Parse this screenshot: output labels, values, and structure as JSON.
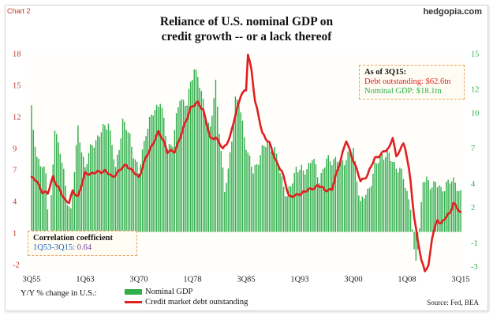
{
  "corner_label": "Chart 2",
  "brand": "hedgopia.com",
  "title_line1": "Reliance of U.S. nominal GDP on",
  "title_line2": "credit growth -- or a lack thereof",
  "as_of": {
    "header": "As of 3Q15:",
    "debt": "Debt outstanding: $62.6tn",
    "gdp": "Nominal GDP: $18.1tn"
  },
  "correlation": {
    "header": "Correlation coefficient",
    "range_label": "1Q53-3Q15: ",
    "value": "0.64"
  },
  "legend": {
    "prefix": "Y/Y % change in U.S.:",
    "gdp": "Nominal GDP",
    "debt": "Credit market debt outstanding"
  },
  "source": "Source: Fed, BEA",
  "colors": {
    "gdp_bars": "#2fae4a",
    "debt_line": "#e02020",
    "left_axis_text": "#c0392b",
    "right_axis_text": "#2fae4a",
    "range_text": "#1f5fbf",
    "value_text": "#7a3fa0"
  },
  "chart_data": {
    "type": "bar+line",
    "x_tick_labels": [
      "3Q55",
      "1Q63",
      "3Q70",
      "1Q78",
      "3Q85",
      "1Q93",
      "3Q00",
      "1Q08",
      "3Q15"
    ],
    "x_tick_quarters": [
      "1955Q3",
      "1963Q1",
      "1970Q3",
      "1978Q1",
      "1985Q3",
      "1993Q1",
      "2000Q3",
      "2008Q1",
      "2015Q3"
    ],
    "left_axis": {
      "label": "Credit market debt outstanding (Y/Y %)",
      "ticks": [
        -2,
        1,
        4,
        7,
        9,
        12,
        15,
        18
      ],
      "range": [
        -2.5,
        18
      ]
    },
    "right_axis": {
      "label": "Nominal GDP (Y/Y %)",
      "ticks": [
        -3,
        -1,
        2,
        4,
        7,
        10,
        12,
        15
      ],
      "range": [
        -3.3,
        15
      ]
    },
    "grid": false,
    "gdp_anchors": [
      [
        "1955Q3",
        10.6
      ],
      [
        "1956Q2",
        6.0
      ],
      [
        "1957Q3",
        5.2
      ],
      [
        "1958Q1",
        -0.5
      ],
      [
        "1958Q4",
        8.8
      ],
      [
        "1959Q3",
        7.0
      ],
      [
        "1960Q3",
        2.6
      ],
      [
        "1961Q1",
        1.9
      ],
      [
        "1962Q1",
        8.6
      ],
      [
        "1963Q1",
        5.5
      ],
      [
        "1964Q1",
        7.4
      ],
      [
        "1965Q2",
        8.4
      ],
      [
        "1966Q2",
        9.4
      ],
      [
        "1967Q2",
        5.2
      ],
      [
        "1968Q2",
        9.4
      ],
      [
        "1969Q2",
        8.0
      ],
      [
        "1970Q3",
        4.9
      ],
      [
        "1971Q3",
        8.6
      ],
      [
        "1972Q3",
        10.0
      ],
      [
        "1973Q3",
        11.2
      ],
      [
        "1974Q3",
        7.2
      ],
      [
        "1975Q2",
        7.6
      ],
      [
        "1976Q2",
        11.4
      ],
      [
        "1977Q2",
        10.8
      ],
      [
        "1978Q2",
        14.0
      ],
      [
        "1978Q4",
        13.2
      ],
      [
        "1979Q4",
        10.0
      ],
      [
        "1980Q3",
        8.8
      ],
      [
        "1981Q2",
        12.4
      ],
      [
        "1982Q3",
        3.4
      ],
      [
        "1983Q1",
        5.0
      ],
      [
        "1984Q1",
        11.2
      ],
      [
        "1984Q3",
        10.8
      ],
      [
        "1985Q4",
        6.6
      ],
      [
        "1986Q3",
        5.0
      ],
      [
        "1987Q3",
        6.6
      ],
      [
        "1988Q3",
        7.6
      ],
      [
        "1989Q3",
        6.8
      ],
      [
        "1990Q4",
        4.0
      ],
      [
        "1991Q2",
        2.8
      ],
      [
        "1992Q3",
        5.5
      ],
      [
        "1993Q3",
        5.0
      ],
      [
        "1994Q4",
        6.2
      ],
      [
        "1995Q4",
        4.5
      ],
      [
        "1996Q4",
        6.0
      ],
      [
        "1997Q4",
        6.2
      ],
      [
        "1998Q4",
        5.8
      ],
      [
        "1999Q4",
        6.5
      ],
      [
        "2000Q3",
        6.9
      ],
      [
        "2001Q3",
        2.4
      ],
      [
        "2002Q3",
        3.4
      ],
      [
        "2003Q3",
        5.4
      ],
      [
        "2004Q3",
        6.6
      ],
      [
        "2005Q3",
        6.4
      ],
      [
        "2006Q3",
        5.6
      ],
      [
        "2007Q3",
        4.6
      ],
      [
        "2008Q3",
        2.2
      ],
      [
        "2009Q1",
        -2.0
      ],
      [
        "2009Q2",
        -2.5
      ],
      [
        "2009Q4",
        0.4
      ],
      [
        "2010Q2",
        4.4
      ],
      [
        "2011Q2",
        4.0
      ],
      [
        "2012Q1",
        4.2
      ],
      [
        "2012Q4",
        3.4
      ],
      [
        "2013Q3",
        4.2
      ],
      [
        "2014Q2",
        4.2
      ],
      [
        "2014Q4",
        4.2
      ],
      [
        "2015Q1",
        4.0
      ],
      [
        "2015Q3",
        3.2
      ]
    ],
    "debt_anchors": [
      [
        "1955Q3",
        6.3
      ],
      [
        "1956Q2",
        6.0
      ],
      [
        "1957Q1",
        5.0
      ],
      [
        "1957Q4",
        4.8
      ],
      [
        "1958Q3",
        6.5
      ],
      [
        "1959Q1",
        5.6
      ],
      [
        "1960Q2",
        4.2
      ],
      [
        "1960Q4",
        4.0
      ],
      [
        "1961Q2",
        5.0
      ],
      [
        "1962Q1",
        4.6
      ],
      [
        "1963Q1",
        6.7
      ],
      [
        "1964Q3",
        6.8
      ],
      [
        "1965Q4",
        7.0
      ],
      [
        "1966Q4",
        6.4
      ],
      [
        "1967Q3",
        6.8
      ],
      [
        "1968Q4",
        7.6
      ],
      [
        "1969Q3",
        7.0
      ],
      [
        "1970Q3",
        6.4
      ],
      [
        "1971Q3",
        8.2
      ],
      [
        "1972Q4",
        10.0
      ],
      [
        "1973Q2",
        10.6
      ],
      [
        "1974Q1",
        9.8
      ],
      [
        "1974Q3",
        8.8
      ],
      [
        "1975Q3",
        8.8
      ],
      [
        "1976Q4",
        11.0
      ],
      [
        "1977Q4",
        13.0
      ],
      [
        "1978Q4",
        13.4
      ],
      [
        "1979Q3",
        12.8
      ],
      [
        "1980Q3",
        10.0
      ],
      [
        "1981Q2",
        10.2
      ],
      [
        "1982Q2",
        9.0
      ],
      [
        "1983Q2",
        10.2
      ],
      [
        "1984Q1",
        12.2
      ],
      [
        "1984Q4",
        14.2
      ],
      [
        "1985Q3",
        14.6
      ],
      [
        "1985Q4",
        18.0
      ],
      [
        "1986Q2",
        16.6
      ],
      [
        "1986Q4",
        13.6
      ],
      [
        "1987Q4",
        10.6
      ],
      [
        "1988Q4",
        9.6
      ],
      [
        "1989Q3",
        8.2
      ],
      [
        "1990Q3",
        6.9
      ],
      [
        "1991Q3",
        4.6
      ],
      [
        "1992Q3",
        4.6
      ],
      [
        "1993Q3",
        5.0
      ],
      [
        "1994Q3",
        5.2
      ],
      [
        "1995Q3",
        5.6
      ],
      [
        "1996Q3",
        5.2
      ],
      [
        "1997Q3",
        5.2
      ],
      [
        "1998Q3",
        7.6
      ],
      [
        "1999Q3",
        9.8
      ],
      [
        "2000Q3",
        8.0
      ],
      [
        "2001Q3",
        6.0
      ],
      [
        "2002Q3",
        6.6
      ],
      [
        "2003Q3",
        8.2
      ],
      [
        "2004Q3",
        8.6
      ],
      [
        "2005Q3",
        9.2
      ],
      [
        "2006Q1",
        10.2
      ],
      [
        "2006Q3",
        8.2
      ],
      [
        "2007Q1",
        9.0
      ],
      [
        "2007Q3",
        9.6
      ],
      [
        "2007Q4",
        9.2
      ],
      [
        "2008Q3",
        6.0
      ],
      [
        "2009Q1",
        2.6
      ],
      [
        "2009Q3",
        0.5
      ],
      [
        "2010Q1",
        -1.6
      ],
      [
        "2010Q3",
        -2.4
      ],
      [
        "2011Q1",
        -2.0
      ],
      [
        "2011Q3",
        0.6
      ],
      [
        "2012Q2",
        2.4
      ],
      [
        "2012Q4",
        2.0
      ],
      [
        "2013Q3",
        2.6
      ],
      [
        "2014Q1",
        3.0
      ],
      [
        "2014Q3",
        4.0
      ],
      [
        "2015Q1",
        3.4
      ],
      [
        "2015Q3",
        3.0
      ]
    ]
  }
}
